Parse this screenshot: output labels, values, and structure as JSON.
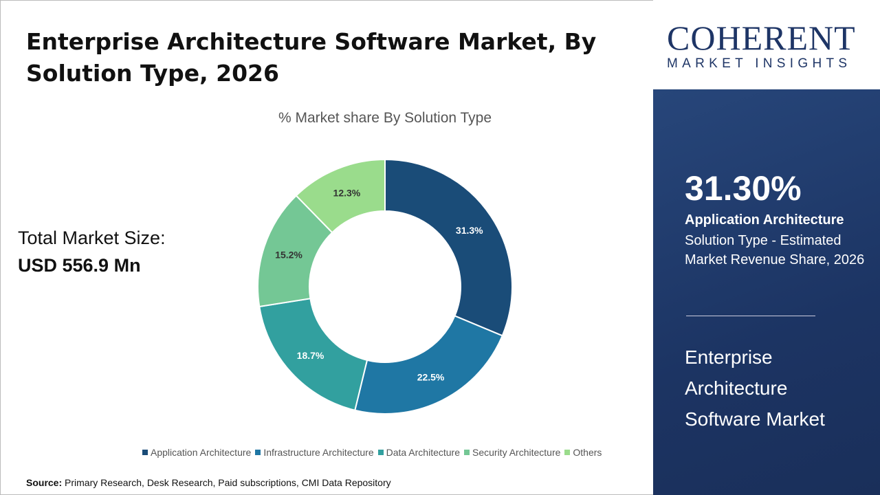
{
  "header": {
    "title": "Enterprise Architecture Software Market, By Solution Type, 2026"
  },
  "total": {
    "label": "Total Market Size:",
    "value": "USD 556.9 Mn"
  },
  "source": {
    "label": "Source:",
    "text": "Primary Research, Desk Research, Paid subscriptions, CMI Data Repository"
  },
  "logo": {
    "main": "COHERENT",
    "sub": "MARKET INSIGHTS"
  },
  "highlight": {
    "percent": "31.30%",
    "segment": "Application Architecture",
    "description": "Solution Type - Estimated Market Revenue Share, 2026",
    "market": "Enterprise Architecture Software Market"
  },
  "chart_data": {
    "type": "pie",
    "donut": true,
    "title": "% Market share By Solution Type",
    "categories": [
      "Application Architecture",
      "Infrastructure Architecture",
      "Data Architecture",
      "Security Architecture",
      "Others"
    ],
    "values": [
      31.3,
      22.5,
      18.7,
      15.2,
      12.3
    ],
    "labels": [
      "31.3%",
      "22.5%",
      "18.7%",
      "15.2%",
      "12.3%"
    ],
    "colors": [
      "#1a4c78",
      "#1f77a4",
      "#32a09f",
      "#74c795",
      "#9adc8c"
    ],
    "legend": "bottom"
  }
}
